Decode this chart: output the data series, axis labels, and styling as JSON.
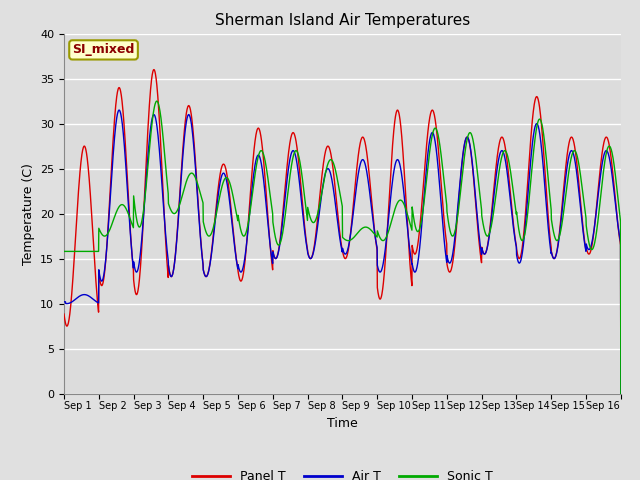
{
  "title": "Sherman Island Air Temperatures",
  "xlabel": "Time",
  "ylabel": "Temperature (C)",
  "ylim": [
    0,
    40
  ],
  "yticks": [
    0,
    5,
    10,
    15,
    20,
    25,
    30,
    35,
    40
  ],
  "annotation": "SI_mixed",
  "annotation_color": "#8B0000",
  "annotation_bg": "#FFFFCC",
  "annotation_edge": "#999900",
  "fig_bg_color": "#E0E0E0",
  "plot_bg_color": "#DCDCDC",
  "panel_color": "#DD0000",
  "air_color": "#0000CC",
  "sonic_color": "#00AA00",
  "legend_labels": [
    "Panel T",
    "Air T",
    "Sonic T"
  ],
  "x_tick_labels": [
    "Sep 1",
    "Sep 2",
    "Sep 3",
    "Sep 4",
    "Sep 5",
    "Sep 6",
    "Sep 7",
    "Sep 8",
    "Sep 9",
    "Sep 10",
    "Sep 11",
    "Sep 12",
    "Sep 13",
    "Sep 14",
    "Sep 15",
    "Sep 16"
  ],
  "n_days": 16,
  "panel_peaks": [
    27.5,
    34.0,
    36.0,
    32.0,
    25.5,
    29.5,
    29.0,
    27.5,
    28.5,
    31.5,
    31.5,
    28.5,
    28.5,
    33.0,
    28.5,
    28.5
  ],
  "panel_troughs": [
    7.5,
    12.0,
    11.0,
    13.0,
    13.0,
    12.5,
    15.0,
    15.0,
    15.0,
    10.5,
    15.5,
    13.5,
    15.5,
    15.0,
    15.0,
    15.5
  ],
  "air_peaks": [
    11.0,
    31.5,
    31.0,
    31.0,
    24.5,
    26.5,
    27.0,
    25.0,
    26.0,
    26.0,
    29.0,
    28.5,
    27.0,
    30.0,
    27.0,
    27.0
  ],
  "air_troughs": [
    10.0,
    12.5,
    13.5,
    13.0,
    13.0,
    13.5,
    15.0,
    15.0,
    15.5,
    13.5,
    13.5,
    14.5,
    15.5,
    14.5,
    15.0,
    16.0
  ],
  "sonic_peaks": [
    15.8,
    21.0,
    32.5,
    24.5,
    24.0,
    27.0,
    27.0,
    26.0,
    18.5,
    21.5,
    29.5,
    29.0,
    27.0,
    30.5,
    27.0,
    27.5
  ],
  "sonic_troughs": [
    15.8,
    17.5,
    18.5,
    20.0,
    17.5,
    17.5,
    16.5,
    19.0,
    17.0,
    17.0,
    18.0,
    17.5,
    17.5,
    17.0,
    17.0,
    16.0
  ],
  "pts_per_day": 144,
  "peak_hour": 14,
  "trough_hour": 5,
  "sonic_lag_hours": 2,
  "linewidth": 1.0,
  "title_fontsize": 11,
  "axis_fontsize": 9,
  "tick_fontsize": 7,
  "legend_fontsize": 9
}
